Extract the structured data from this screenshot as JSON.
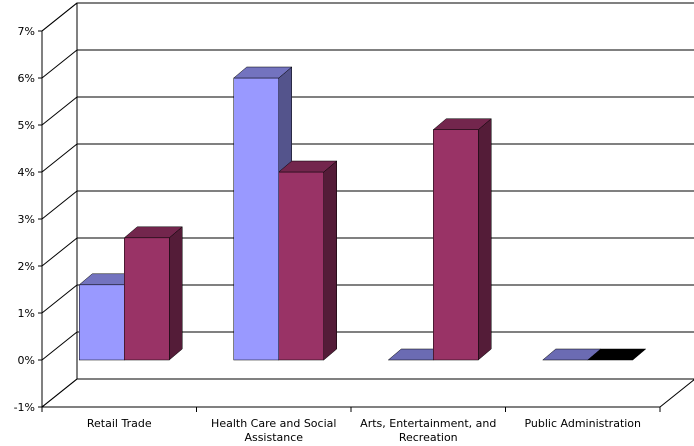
{
  "chart_data": {
    "type": "bar",
    "categories": [
      [
        "Retail Trade"
      ],
      [
        "Health Care and Social",
        "Assistance"
      ],
      [
        "Arts, Entertainment, and",
        "Recreation"
      ],
      [
        "Public Administration"
      ]
    ],
    "series": [
      {
        "values": [
          1.6,
          6.0,
          0.0,
          0.0
        ],
        "color": "#9999ff"
      },
      {
        "values": [
          2.6,
          4.0,
          4.9,
          0.0
        ],
        "color": "#993366"
      }
    ],
    "ylim": [
      -1,
      7
    ],
    "yticks": [
      -1,
      0,
      1,
      2,
      3,
      4,
      5,
      6,
      7
    ],
    "ytick_labels": [
      "-1%",
      "0%",
      "1%",
      "2%",
      "3%",
      "4%",
      "5%",
      "6%",
      "7%"
    ],
    "grid": true,
    "style": "3d-clustered-bar"
  }
}
